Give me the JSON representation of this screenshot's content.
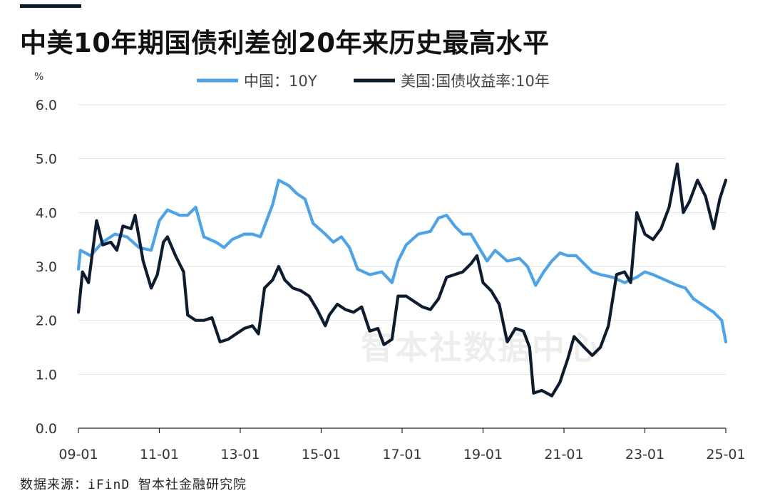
{
  "title": "中美10年期国债利差创20年来历史最高水平",
  "source": "数据来源：iFinD 智本社金融研究院",
  "watermark": "智本社数据中心",
  "chart_data": {
    "type": "line",
    "ylabel": "%",
    "ylim": [
      0,
      6
    ],
    "yticks": [
      "0.0",
      "1.0",
      "2.0",
      "3.0",
      "4.0",
      "5.0",
      "6.0"
    ],
    "xlim": [
      2009.0,
      2025.0
    ],
    "xticks": [
      {
        "x": 2009,
        "label": "09-01"
      },
      {
        "x": 2011,
        "label": "11-01"
      },
      {
        "x": 2013,
        "label": "13-01"
      },
      {
        "x": 2015,
        "label": "15-01"
      },
      {
        "x": 2017,
        "label": "17-01"
      },
      {
        "x": 2019,
        "label": "19-01"
      },
      {
        "x": 2021,
        "label": "21-01"
      },
      {
        "x": 2023,
        "label": "23-01"
      },
      {
        "x": 2025,
        "label": "25-01"
      }
    ],
    "grid": true,
    "legend": "top",
    "series": [
      {
        "name": "中国：10Y",
        "color": "#4ea3e6",
        "points": [
          [
            2009.0,
            2.95
          ],
          [
            2009.05,
            3.3
          ],
          [
            2009.3,
            3.2
          ],
          [
            2009.6,
            3.45
          ],
          [
            2009.9,
            3.6
          ],
          [
            2010.2,
            3.55
          ],
          [
            2010.5,
            3.35
          ],
          [
            2010.8,
            3.3
          ],
          [
            2011.0,
            3.85
          ],
          [
            2011.2,
            4.05
          ],
          [
            2011.5,
            3.95
          ],
          [
            2011.7,
            3.95
          ],
          [
            2011.9,
            4.1
          ],
          [
            2012.1,
            3.55
          ],
          [
            2012.4,
            3.45
          ],
          [
            2012.6,
            3.35
          ],
          [
            2012.8,
            3.5
          ],
          [
            2013.1,
            3.6
          ],
          [
            2013.3,
            3.6
          ],
          [
            2013.5,
            3.55
          ],
          [
            2013.8,
            4.15
          ],
          [
            2013.95,
            4.6
          ],
          [
            2014.2,
            4.5
          ],
          [
            2014.4,
            4.35
          ],
          [
            2014.6,
            4.25
          ],
          [
            2014.8,
            3.8
          ],
          [
            2015.1,
            3.6
          ],
          [
            2015.3,
            3.45
          ],
          [
            2015.5,
            3.55
          ],
          [
            2015.7,
            3.35
          ],
          [
            2015.9,
            2.95
          ],
          [
            2016.2,
            2.85
          ],
          [
            2016.5,
            2.9
          ],
          [
            2016.75,
            2.7
          ],
          [
            2016.9,
            3.1
          ],
          [
            2017.1,
            3.4
          ],
          [
            2017.4,
            3.6
          ],
          [
            2017.7,
            3.65
          ],
          [
            2017.9,
            3.9
          ],
          [
            2018.1,
            3.95
          ],
          [
            2018.3,
            3.75
          ],
          [
            2018.5,
            3.6
          ],
          [
            2018.7,
            3.6
          ],
          [
            2018.9,
            3.35
          ],
          [
            2019.1,
            3.1
          ],
          [
            2019.3,
            3.3
          ],
          [
            2019.6,
            3.1
          ],
          [
            2019.9,
            3.15
          ],
          [
            2020.1,
            3.0
          ],
          [
            2020.3,
            2.65
          ],
          [
            2020.5,
            2.9
          ],
          [
            2020.7,
            3.1
          ],
          [
            2020.9,
            3.25
          ],
          [
            2021.1,
            3.2
          ],
          [
            2021.3,
            3.2
          ],
          [
            2021.5,
            3.05
          ],
          [
            2021.7,
            2.9
          ],
          [
            2021.9,
            2.85
          ],
          [
            2022.2,
            2.8
          ],
          [
            2022.5,
            2.7
          ],
          [
            2022.8,
            2.8
          ],
          [
            2023.0,
            2.9
          ],
          [
            2023.2,
            2.85
          ],
          [
            2023.5,
            2.75
          ],
          [
            2023.8,
            2.65
          ],
          [
            2024.0,
            2.6
          ],
          [
            2024.2,
            2.4
          ],
          [
            2024.5,
            2.25
          ],
          [
            2024.7,
            2.15
          ],
          [
            2024.9,
            2.0
          ],
          [
            2025.0,
            1.6
          ]
        ]
      },
      {
        "name": "美国:国债收益率:10年",
        "color": "#0e1c2f",
        "points": [
          [
            2009.0,
            2.15
          ],
          [
            2009.1,
            2.9
          ],
          [
            2009.25,
            2.7
          ],
          [
            2009.45,
            3.85
          ],
          [
            2009.6,
            3.4
          ],
          [
            2009.8,
            3.45
          ],
          [
            2009.95,
            3.3
          ],
          [
            2010.1,
            3.75
          ],
          [
            2010.3,
            3.7
          ],
          [
            2010.4,
            3.95
          ],
          [
            2010.6,
            3.1
          ],
          [
            2010.8,
            2.6
          ],
          [
            2010.95,
            2.85
          ],
          [
            2011.1,
            3.45
          ],
          [
            2011.2,
            3.55
          ],
          [
            2011.4,
            3.2
          ],
          [
            2011.6,
            2.9
          ],
          [
            2011.7,
            2.1
          ],
          [
            2011.9,
            2.0
          ],
          [
            2012.1,
            2.0
          ],
          [
            2012.3,
            2.05
          ],
          [
            2012.5,
            1.6
          ],
          [
            2012.7,
            1.65
          ],
          [
            2012.9,
            1.75
          ],
          [
            2013.1,
            1.85
          ],
          [
            2013.3,
            1.9
          ],
          [
            2013.45,
            1.75
          ],
          [
            2013.6,
            2.6
          ],
          [
            2013.8,
            2.75
          ],
          [
            2013.95,
            3.0
          ],
          [
            2014.1,
            2.75
          ],
          [
            2014.3,
            2.6
          ],
          [
            2014.5,
            2.55
          ],
          [
            2014.7,
            2.45
          ],
          [
            2014.9,
            2.2
          ],
          [
            2015.1,
            1.9
          ],
          [
            2015.2,
            2.1
          ],
          [
            2015.4,
            2.3
          ],
          [
            2015.6,
            2.2
          ],
          [
            2015.8,
            2.15
          ],
          [
            2016.0,
            2.25
          ],
          [
            2016.2,
            1.8
          ],
          [
            2016.4,
            1.85
          ],
          [
            2016.55,
            1.55
          ],
          [
            2016.75,
            1.65
          ],
          [
            2016.9,
            2.45
          ],
          [
            2017.1,
            2.45
          ],
          [
            2017.3,
            2.35
          ],
          [
            2017.5,
            2.25
          ],
          [
            2017.7,
            2.2
          ],
          [
            2017.9,
            2.4
          ],
          [
            2018.1,
            2.8
          ],
          [
            2018.3,
            2.85
          ],
          [
            2018.5,
            2.9
          ],
          [
            2018.7,
            3.05
          ],
          [
            2018.85,
            3.2
          ],
          [
            2019.0,
            2.7
          ],
          [
            2019.2,
            2.55
          ],
          [
            2019.4,
            2.3
          ],
          [
            2019.6,
            1.6
          ],
          [
            2019.8,
            1.85
          ],
          [
            2020.0,
            1.8
          ],
          [
            2020.15,
            1.5
          ],
          [
            2020.25,
            0.65
          ],
          [
            2020.45,
            0.7
          ],
          [
            2020.7,
            0.6
          ],
          [
            2020.9,
            0.85
          ],
          [
            2021.1,
            1.3
          ],
          [
            2021.25,
            1.7
          ],
          [
            2021.5,
            1.5
          ],
          [
            2021.7,
            1.35
          ],
          [
            2021.9,
            1.5
          ],
          [
            2022.1,
            1.9
          ],
          [
            2022.3,
            2.85
          ],
          [
            2022.5,
            2.9
          ],
          [
            2022.65,
            2.7
          ],
          [
            2022.8,
            4.0
          ],
          [
            2023.0,
            3.6
          ],
          [
            2023.2,
            3.5
          ],
          [
            2023.4,
            3.7
          ],
          [
            2023.6,
            4.1
          ],
          [
            2023.8,
            4.9
          ],
          [
            2023.95,
            4.0
          ],
          [
            2024.1,
            4.2
          ],
          [
            2024.3,
            4.6
          ],
          [
            2024.5,
            4.3
          ],
          [
            2024.7,
            3.7
          ],
          [
            2024.85,
            4.25
          ],
          [
            2025.0,
            4.6
          ]
        ]
      }
    ]
  }
}
